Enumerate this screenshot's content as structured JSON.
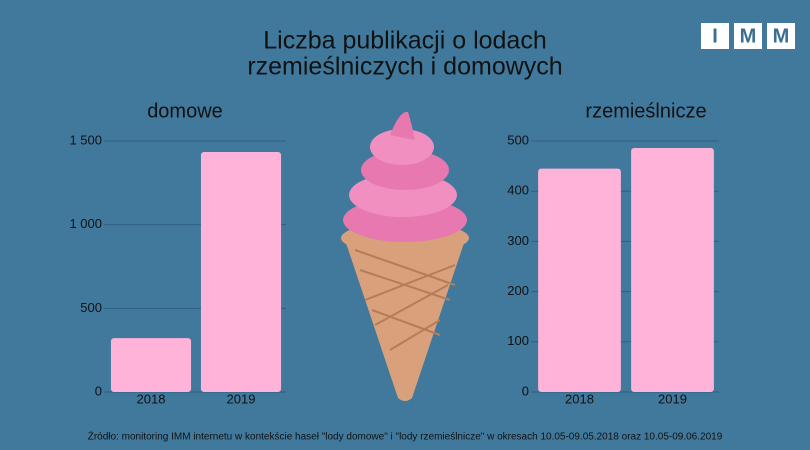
{
  "title": [
    "Liczba publikacji o lodach",
    "rzemieślniczych i domowych"
  ],
  "logo": [
    "I",
    "M",
    "M"
  ],
  "source": "Źródło: monitoring IMM internetu w kontekście haseł \"lody domowe\" i \"lody rzemieślnicze\" w okresach 10.05-09.05.2018 oraz 10.05-09.06.2019",
  "chart_data": [
    {
      "type": "bar",
      "title": "domowe",
      "categories": [
        "2018",
        "2019"
      ],
      "values": [
        322,
        1434
      ],
      "color": "#ffb3d9",
      "ylim": [
        0,
        1500
      ],
      "yticks": [
        0,
        500,
        {
          "value": 1000,
          "label": "1 000"
        },
        {
          "value": 1500,
          "label": "1 500"
        }
      ],
      "grid": true
    },
    {
      "type": "bar",
      "title": "rzemieślnicze",
      "categories": [
        "2018",
        "2019"
      ],
      "values": [
        445,
        486
      ],
      "color": "#ffb3d9",
      "ylim": [
        0,
        500
      ],
      "yticks": [
        0,
        100,
        200,
        300,
        400,
        500
      ],
      "grid": true
    }
  ]
}
